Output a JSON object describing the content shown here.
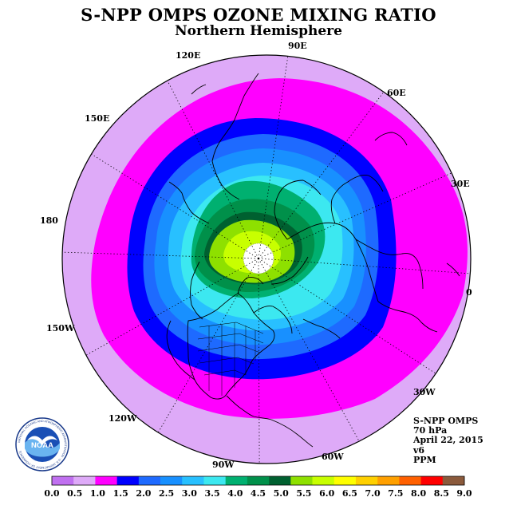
{
  "header": {
    "title": "S-NPP OMPS OZONE MIXING RATIO",
    "subtitle": "Northern Hemisphere"
  },
  "map": {
    "projection": "north polar stereographic",
    "longitude_labels": [
      "90E",
      "60E",
      "30E",
      "0",
      "30W",
      "60W",
      "90W",
      "120W",
      "150W",
      "180",
      "150E",
      "120E"
    ],
    "contour_levels_ppm": [
      1.0,
      1.5,
      2.0,
      2.5,
      3.0,
      3.5,
      4.0,
      4.5,
      5.0,
      5.5
    ],
    "features": [
      "coastlines",
      "US state boundaries",
      "polar no-data disk"
    ]
  },
  "info": {
    "instrument": "S-NPP OMPS",
    "level": "70 hPa",
    "date": "April 22, 2015",
    "version": "v6",
    "units": "PPM"
  },
  "colorbar": {
    "labels": [
      "0.0",
      "0.5",
      "1.0",
      "1.5",
      "2.0",
      "2.5",
      "3.0",
      "3.5",
      "4.0",
      "4.5",
      "5.0",
      "5.5",
      "6.0",
      "6.5",
      "7.0",
      "7.5",
      "8.0",
      "8.5",
      "9.0"
    ],
    "colors": [
      "#c070f0",
      "#deaaf8",
      "#ff00ff",
      "#0000ff",
      "#1e6aff",
      "#1890ff",
      "#28c0ff",
      "#3ce8f0",
      "#00b070",
      "#00904a",
      "#006030",
      "#8ee000",
      "#c8ff00",
      "#ffff00",
      "#ffd000",
      "#ffa000",
      "#ff6000",
      "#ff0000",
      "#8b5a3c"
    ]
  },
  "logo": {
    "text": "NOAA",
    "ring_text": "NATIONAL OCEANIC AND ATMOSPHERIC ADMINISTRATION · U.S. DEPARTMENT OF COMMERCE"
  }
}
